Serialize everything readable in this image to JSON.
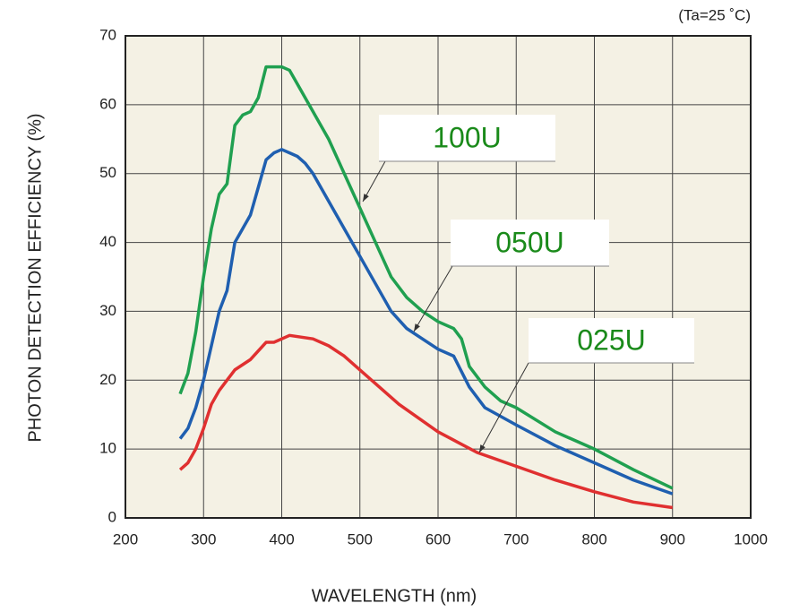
{
  "chart_data": {
    "type": "line",
    "annotation": "(Ta=25 ˚C)",
    "x_label": "WAVELENGTH (nm)",
    "y_label": "PHOTON DETECTION EFFICIENCY (%)",
    "xlim": [
      200,
      1000
    ],
    "xticks": [
      200,
      300,
      400,
      500,
      600,
      700,
      800,
      900,
      1000
    ],
    "ylim": [
      0,
      70
    ],
    "yticks": [
      0,
      10,
      20,
      30,
      40,
      50,
      60,
      70
    ],
    "grid": true,
    "series": [
      {
        "name": "100U",
        "color": "#20a050",
        "x": [
          270,
          280,
          290,
          300,
          310,
          320,
          330,
          340,
          350,
          360,
          370,
          380,
          390,
          400,
          410,
          420,
          440,
          460,
          480,
          500,
          520,
          540,
          560,
          580,
          600,
          620,
          630,
          640,
          660,
          680,
          700,
          750,
          800,
          850,
          900
        ],
        "values": [
          18,
          21,
          27,
          35,
          42,
          47,
          48.5,
          57,
          58.5,
          59,
          61,
          65.5,
          65.5,
          65.5,
          65,
          63,
          59,
          55,
          50,
          45,
          40,
          35,
          32,
          30,
          28.5,
          27.5,
          26,
          22,
          19,
          17,
          16,
          12.5,
          10,
          7,
          4.3
        ]
      },
      {
        "name": "050U",
        "color": "#1f5fb0",
        "x": [
          270,
          280,
          290,
          300,
          310,
          320,
          330,
          340,
          350,
          360,
          370,
          380,
          390,
          400,
          410,
          420,
          430,
          440,
          460,
          480,
          500,
          520,
          540,
          560,
          580,
          600,
          620,
          640,
          660,
          700,
          750,
          800,
          850,
          900
        ],
        "values": [
          11.5,
          13,
          16,
          20,
          25,
          30,
          33,
          40,
          42,
          44,
          48,
          52,
          53,
          53.5,
          53,
          52.5,
          51.5,
          50,
          46,
          42,
          38,
          34,
          30,
          27.5,
          26,
          24.5,
          23.5,
          19,
          16,
          13.5,
          10.5,
          8,
          5.5,
          3.5
        ]
      },
      {
        "name": "025U",
        "color": "#e03030",
        "x": [
          270,
          280,
          290,
          300,
          310,
          320,
          340,
          360,
          380,
          390,
          400,
          410,
          440,
          460,
          480,
          500,
          550,
          600,
          650,
          700,
          750,
          800,
          850,
          900
        ],
        "values": [
          7,
          8,
          10,
          13,
          16.5,
          18.5,
          21.5,
          23,
          25.5,
          25.5,
          26,
          26.5,
          26,
          25,
          23.5,
          21.5,
          16.5,
          12.5,
          9.5,
          7.5,
          5.5,
          3.8,
          2.3,
          1.5
        ]
      }
    ]
  }
}
